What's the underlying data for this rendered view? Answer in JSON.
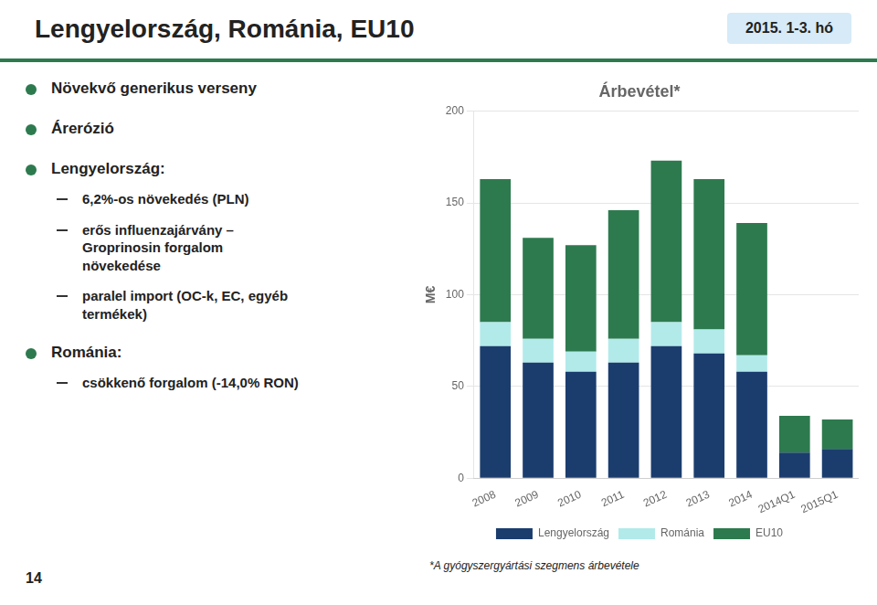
{
  "title": "Lengyelország, Románia, EU10",
  "subtitle": "2015. 1-3. hó",
  "bullets": [
    {
      "text": "Növekvő generikus verseny"
    },
    {
      "text": "Árerózió"
    },
    {
      "text": "Lengyelország:",
      "items": [
        "6,2%-os növekedés (PLN)",
        "erős influenzajárvány –\nGroprinosin forgalom\nnövekedése",
        "paralel import (OC-k, EC, egyéb\ntermékek)"
      ]
    },
    {
      "text": "Románia:",
      "items": [
        "csökkenő forgalom (-14,0% RON)"
      ]
    }
  ],
  "footnote": "*A gyógyszergyártási szegmens árbevétele",
  "page_number": "14",
  "chart_data": {
    "type": "bar",
    "stacked": true,
    "title": "Árbevétel*",
    "ylabel": "M€",
    "categories": [
      "2008",
      "2009",
      "2010",
      "2011",
      "2012",
      "2013",
      "2014",
      "2014Q1",
      "2015Q1"
    ],
    "series": [
      {
        "name": "Lengyelország",
        "color": "#1b3d6e",
        "values": [
          72,
          63,
          58,
          63,
          72,
          68,
          58,
          14,
          16
        ]
      },
      {
        "name": "Románia",
        "color": "#b2eaea",
        "values": [
          13,
          13,
          11,
          13,
          13,
          13,
          9,
          0,
          0
        ]
      },
      {
        "name": "EU10",
        "color": "#2d7a4f",
        "values": [
          78,
          55,
          58,
          70,
          88,
          82,
          72,
          20,
          16
        ]
      }
    ],
    "ylim": [
      0,
      200
    ],
    "yticks": [
      0,
      50,
      100,
      150,
      200
    ],
    "grid": true,
    "legend": "bottom"
  }
}
